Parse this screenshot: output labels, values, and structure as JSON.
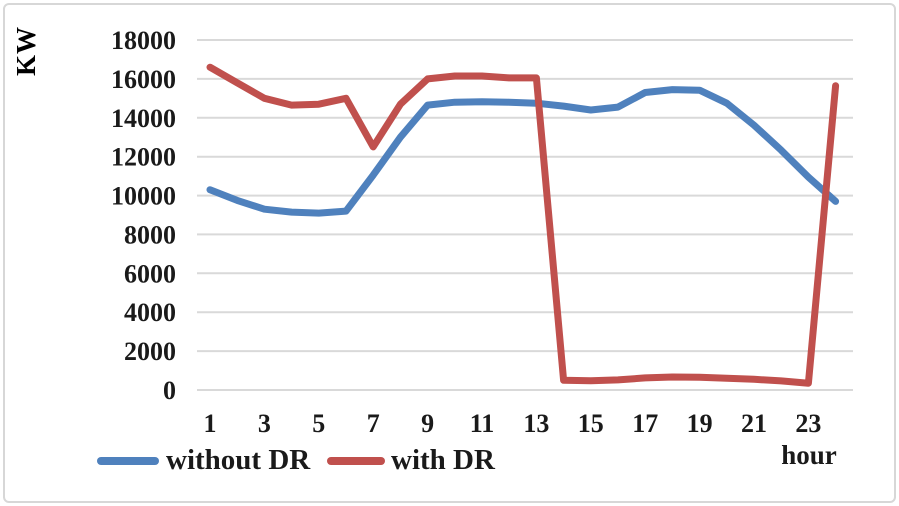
{
  "figure": {
    "ylabel": "KW",
    "xlabel": "hour"
  },
  "legend": {
    "items": [
      {
        "label": "without DR",
        "color": "#4f81bd"
      },
      {
        "label": "with DR",
        "color": "#c0504d"
      }
    ]
  },
  "chart_data": {
    "type": "line",
    "title": "",
    "xlabel": "hour",
    "ylabel": "KW",
    "x": [
      1,
      2,
      3,
      4,
      5,
      6,
      7,
      8,
      9,
      10,
      11,
      12,
      13,
      14,
      15,
      16,
      17,
      18,
      19,
      20,
      21,
      22,
      23,
      24
    ],
    "series": [
      {
        "name": "without DR",
        "color": "#4f81bd",
        "values": [
          10300,
          9750,
          9300,
          9150,
          9100,
          9200,
          11050,
          13000,
          14650,
          14800,
          14820,
          14800,
          14750,
          14600,
          14400,
          14550,
          15300,
          15450,
          15420,
          14750,
          13620,
          12330,
          10950,
          9700
        ]
      },
      {
        "name": "with DR",
        "color": "#c0504d",
        "values": [
          16600,
          15800,
          15000,
          14650,
          14700,
          15000,
          12500,
          14700,
          16000,
          16150,
          16150,
          16050,
          16050,
          500,
          480,
          520,
          620,
          670,
          660,
          600,
          550,
          470,
          350,
          15650
        ]
      }
    ],
    "ylim": [
      0,
      18000
    ],
    "y_ticks": [
      0,
      2000,
      4000,
      6000,
      8000,
      10000,
      12000,
      14000,
      16000,
      18000
    ],
    "x_ticks": [
      1,
      3,
      5,
      7,
      9,
      11,
      13,
      15,
      17,
      19,
      21,
      23
    ],
    "grid": "horizontal-only",
    "gridline_color": "#d9d9d9",
    "legend_position": "bottom-left",
    "line_width": 7
  }
}
